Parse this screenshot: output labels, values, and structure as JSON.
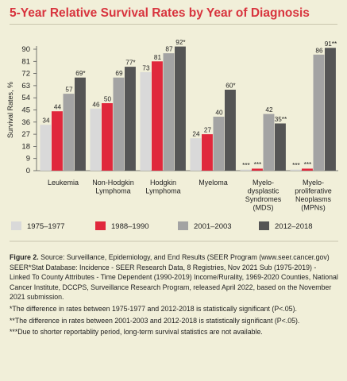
{
  "title": "5-Year Relative Survival Rates by Year of Diagnosis",
  "chart_data": {
    "type": "bar",
    "ylabel": "Survival Rates, %",
    "ylim": [
      0,
      95
    ],
    "yticks": [
      0,
      9,
      18,
      27,
      36,
      45,
      54,
      63,
      72,
      81,
      90
    ],
    "grid": false,
    "legend_position": "bottom",
    "categories": [
      [
        "Leukemia"
      ],
      [
        "Non-Hodgkin",
        "Lymphoma"
      ],
      [
        "Hodgkin",
        "Lymphoma"
      ],
      [
        "Myeloma"
      ],
      [
        "Myelo-",
        "dysplastic",
        "Syndromes",
        "(MDS)"
      ],
      [
        "Myelo-",
        "proliferative",
        "Neoplasms",
        "(MPNs)"
      ]
    ],
    "series": [
      {
        "name": "1975–1977",
        "color": "#d9d9d9",
        "values": [
          34,
          46,
          73,
          24,
          0.8,
          0.8
        ],
        "labels": [
          "34",
          "46",
          "73",
          "24",
          "***",
          "***"
        ]
      },
      {
        "name": "1988–1990",
        "color": "#e0283c",
        "values": [
          44,
          50,
          81,
          27,
          1.5,
          1.5
        ],
        "labels": [
          "44",
          "50",
          "81",
          "27",
          "***",
          "***"
        ]
      },
      {
        "name": "2001–2003",
        "color": "#a3a3a3",
        "values": [
          57,
          69,
          87,
          40,
          42,
          86
        ],
        "labels": [
          "57",
          "69",
          "87",
          "40",
          "42",
          "86"
        ]
      },
      {
        "name": "2012–2018",
        "color": "#555555",
        "values": [
          69,
          77,
          92,
          60,
          35,
          91
        ],
        "labels": [
          "69*",
          "77*",
          "92*",
          "60*",
          "35**",
          "91**"
        ]
      }
    ]
  },
  "caption": {
    "figure_label": "Figure 2.",
    "source": "Source: Surveillance, Epidemiology, and End Results (SEER Program (www.seer.cancer.gov) SEER*Stat Database: Incidence - SEER Research Data, 8 Registries, Nov 2021 Sub (1975-2019) - Linked To County Attributes - Time Dependent (1990-2019) Income/Rurality, 1969-2020 Counties, National Cancer Institute, DCCPS, Surveillance Research Program, released April 2022, based on the November 2021 submission.",
    "note1": "*The difference in rates between 1975-1977 and 2012-2018 is statistically significant (P<.05).",
    "note2": "**The difference in rates between 2001-2003 and 2012-2018 is statistically significant (P<.05).",
    "note3": "***Due to shorter reportablity period, long-term survival statistics are not available."
  }
}
